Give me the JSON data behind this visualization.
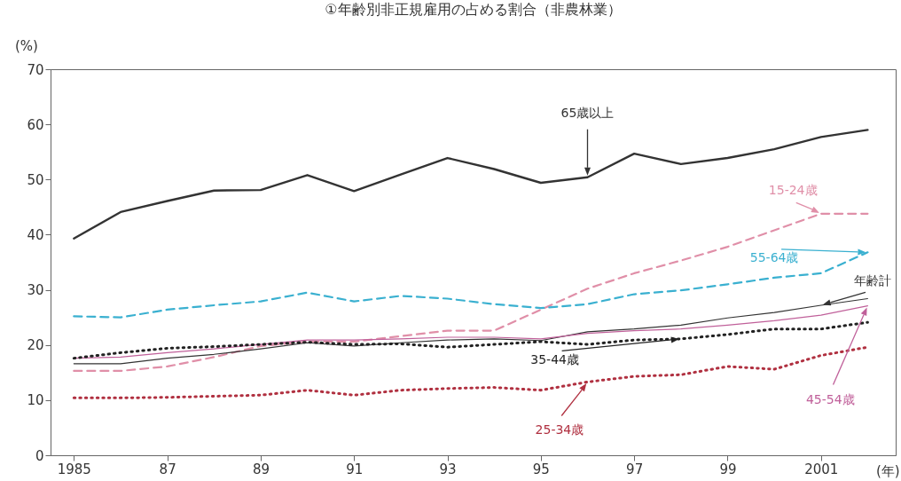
{
  "chart_data": {
    "type": "line",
    "title": "①年齢別非正規雇用の占める割合（非農林業）",
    "ylabel": "(%)",
    "xlabel": "(年)",
    "x": [
      1985,
      1986,
      1987,
      1988,
      1989,
      1990,
      1991,
      1992,
      1993,
      1994,
      1995,
      1996,
      1997,
      1998,
      1999,
      2000,
      2001,
      2002
    ],
    "series": [
      {
        "name": "65歳以上",
        "color": "#333333",
        "line_style": "solid",
        "values": [
          39.3,
          44.1,
          46.1,
          48.0,
          48.1,
          50.8,
          47.9,
          50.9,
          53.9,
          51.9,
          49.4,
          50.4,
          54.7,
          52.8,
          53.9,
          55.5,
          57.7,
          59.0
        ]
      },
      {
        "name": "15-24歳",
        "color": "#e08fa8",
        "line_style": "dashed",
        "values": [
          15.3,
          15.3,
          16.1,
          17.8,
          19.8,
          20.6,
          20.6,
          21.6,
          22.6,
          22.6,
          26.4,
          30.2,
          33.0,
          35.3,
          37.8,
          40.8,
          43.8,
          43.8
        ]
      },
      {
        "name": "55-64歳",
        "color": "#3ab0d0",
        "line_style": "dashed",
        "values": [
          25.2,
          25.0,
          26.4,
          27.2,
          27.9,
          29.5,
          27.9,
          28.9,
          28.4,
          27.4,
          26.7,
          27.4,
          29.2,
          29.9,
          31.0,
          32.2,
          33.0,
          36.8
        ]
      },
      {
        "name": "年齢計",
        "color": "#333333",
        "line_style": "solid",
        "values": [
          16.6,
          16.6,
          17.6,
          18.3,
          19.3,
          20.4,
          19.8,
          20.4,
          20.9,
          21.1,
          20.8,
          22.4,
          22.9,
          23.6,
          24.9,
          25.9,
          27.2,
          28.4
        ]
      },
      {
        "name": "45-54歳",
        "color": "#c0609a",
        "line_style": "solid",
        "values": [
          17.6,
          17.8,
          18.6,
          19.3,
          20.1,
          20.9,
          20.9,
          21.1,
          21.4,
          21.4,
          21.1,
          22.1,
          22.6,
          22.9,
          23.6,
          24.4,
          25.4,
          27.1
        ]
      },
      {
        "name": "35-44歳",
        "color": "#222222",
        "line_style": "dotted",
        "values": [
          17.6,
          18.6,
          19.4,
          19.7,
          20.1,
          20.5,
          20.1,
          20.2,
          19.6,
          20.1,
          20.6,
          20.1,
          20.9,
          21.1,
          21.9,
          22.9,
          22.9,
          24.1
        ]
      },
      {
        "name": "25-34歳",
        "color": "#b03040",
        "line_style": "dotted",
        "values": [
          10.4,
          10.4,
          10.5,
          10.7,
          10.9,
          11.8,
          10.9,
          11.8,
          12.1,
          12.3,
          11.8,
          13.3,
          14.3,
          14.6,
          16.1,
          15.6,
          18.1,
          19.6
        ]
      }
    ],
    "xlim": [
      1984.5,
      2002.6
    ],
    "xticks": [
      1985,
      {
        "value": 1987,
        "label": "87"
      },
      {
        "value": 1989,
        "label": "89"
      },
      {
        "value": 1991,
        "label": "91"
      },
      {
        "value": 1993,
        "label": "93"
      },
      {
        "value": 1995,
        "label": "95"
      },
      {
        "value": 1997,
        "label": "97"
      },
      {
        "value": 1999,
        "label": "99"
      },
      2001
    ],
    "ylim": [
      0,
      70
    ],
    "yticks": [
      0,
      10,
      20,
      30,
      40,
      50,
      60,
      70
    ],
    "grid": false
  }
}
